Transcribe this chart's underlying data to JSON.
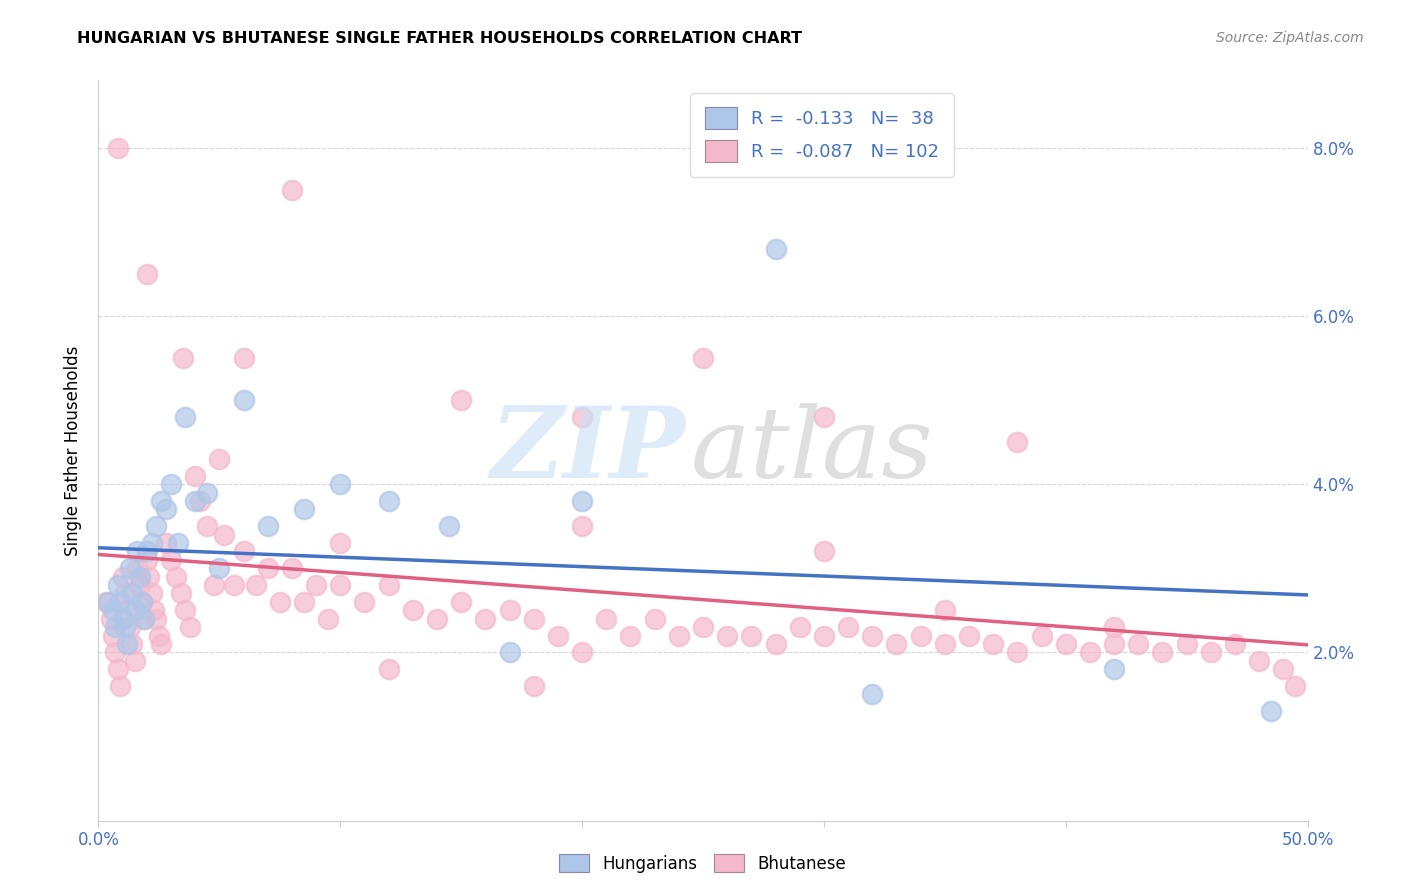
{
  "title": "HUNGARIAN VS BHUTANESE SINGLE FATHER HOUSEHOLDS CORRELATION CHART",
  "source": "Source: ZipAtlas.com",
  "ylabel": "Single Father Households",
  "hungarian_color": "#aec6e8",
  "bhutanese_color": "#f4b8cc",
  "hungarian_line_color": "#4472c4",
  "bhutanese_line_color": "#e06080",
  "xlim": [
    0.0,
    0.5
  ],
  "ylim": [
    0.0,
    0.088
  ],
  "ytick_vals": [
    0.02,
    0.04,
    0.06,
    0.08
  ],
  "ytick_labels": [
    "2.0%",
    "4.0%",
    "6.0%",
    "8.0%"
  ],
  "xtick_edge_labels": [
    "0.0%",
    "50.0%"
  ],
  "hun_R": "-0.133",
  "hun_N": "38",
  "bhu_R": "-0.087",
  "bhu_N": "102",
  "hun_x": [
    0.004,
    0.006,
    0.007,
    0.008,
    0.009,
    0.01,
    0.011,
    0.012,
    0.013,
    0.014,
    0.015,
    0.016,
    0.017,
    0.018,
    0.019,
    0.02,
    0.022,
    0.024,
    0.026,
    0.028,
    0.03,
    0.033,
    0.036,
    0.04,
    0.045,
    0.05,
    0.06,
    0.07,
    0.085,
    0.1,
    0.12,
    0.145,
    0.17,
    0.2,
    0.28,
    0.32,
    0.42,
    0.485
  ],
  "hun_y": [
    0.026,
    0.025,
    0.023,
    0.028,
    0.026,
    0.024,
    0.023,
    0.021,
    0.03,
    0.027,
    0.025,
    0.032,
    0.029,
    0.026,
    0.024,
    0.032,
    0.033,
    0.035,
    0.038,
    0.037,
    0.04,
    0.033,
    0.048,
    0.038,
    0.039,
    0.03,
    0.05,
    0.035,
    0.037,
    0.04,
    0.038,
    0.035,
    0.02,
    0.038,
    0.068,
    0.015,
    0.018,
    0.013
  ],
  "bhu_x": [
    0.003,
    0.005,
    0.006,
    0.007,
    0.008,
    0.009,
    0.01,
    0.011,
    0.012,
    0.013,
    0.014,
    0.015,
    0.016,
    0.017,
    0.018,
    0.019,
    0.02,
    0.021,
    0.022,
    0.023,
    0.024,
    0.025,
    0.026,
    0.028,
    0.03,
    0.032,
    0.034,
    0.036,
    0.038,
    0.04,
    0.042,
    0.045,
    0.048,
    0.052,
    0.056,
    0.06,
    0.065,
    0.07,
    0.075,
    0.08,
    0.085,
    0.09,
    0.095,
    0.1,
    0.11,
    0.12,
    0.13,
    0.14,
    0.15,
    0.16,
    0.17,
    0.18,
    0.19,
    0.2,
    0.21,
    0.22,
    0.23,
    0.24,
    0.25,
    0.26,
    0.27,
    0.28,
    0.29,
    0.3,
    0.31,
    0.32,
    0.33,
    0.34,
    0.35,
    0.36,
    0.37,
    0.38,
    0.39,
    0.4,
    0.41,
    0.42,
    0.43,
    0.44,
    0.45,
    0.46,
    0.008,
    0.02,
    0.035,
    0.06,
    0.08,
    0.15,
    0.2,
    0.25,
    0.3,
    0.38,
    0.05,
    0.1,
    0.2,
    0.3,
    0.35,
    0.42,
    0.47,
    0.48,
    0.49,
    0.495,
    0.12,
    0.18
  ],
  "bhu_y": [
    0.026,
    0.024,
    0.022,
    0.02,
    0.018,
    0.016,
    0.029,
    0.027,
    0.025,
    0.023,
    0.021,
    0.019,
    0.03,
    0.028,
    0.026,
    0.024,
    0.031,
    0.029,
    0.027,
    0.025,
    0.024,
    0.022,
    0.021,
    0.033,
    0.031,
    0.029,
    0.027,
    0.025,
    0.023,
    0.041,
    0.038,
    0.035,
    0.028,
    0.034,
    0.028,
    0.032,
    0.028,
    0.03,
    0.026,
    0.03,
    0.026,
    0.028,
    0.024,
    0.028,
    0.026,
    0.028,
    0.025,
    0.024,
    0.026,
    0.024,
    0.025,
    0.024,
    0.022,
    0.02,
    0.024,
    0.022,
    0.024,
    0.022,
    0.023,
    0.022,
    0.022,
    0.021,
    0.023,
    0.022,
    0.023,
    0.022,
    0.021,
    0.022,
    0.021,
    0.022,
    0.021,
    0.02,
    0.022,
    0.021,
    0.02,
    0.021,
    0.021,
    0.02,
    0.021,
    0.02,
    0.08,
    0.065,
    0.055,
    0.055,
    0.075,
    0.05,
    0.048,
    0.055,
    0.048,
    0.045,
    0.043,
    0.033,
    0.035,
    0.032,
    0.025,
    0.023,
    0.021,
    0.019,
    0.018,
    0.016,
    0.018,
    0.016
  ]
}
